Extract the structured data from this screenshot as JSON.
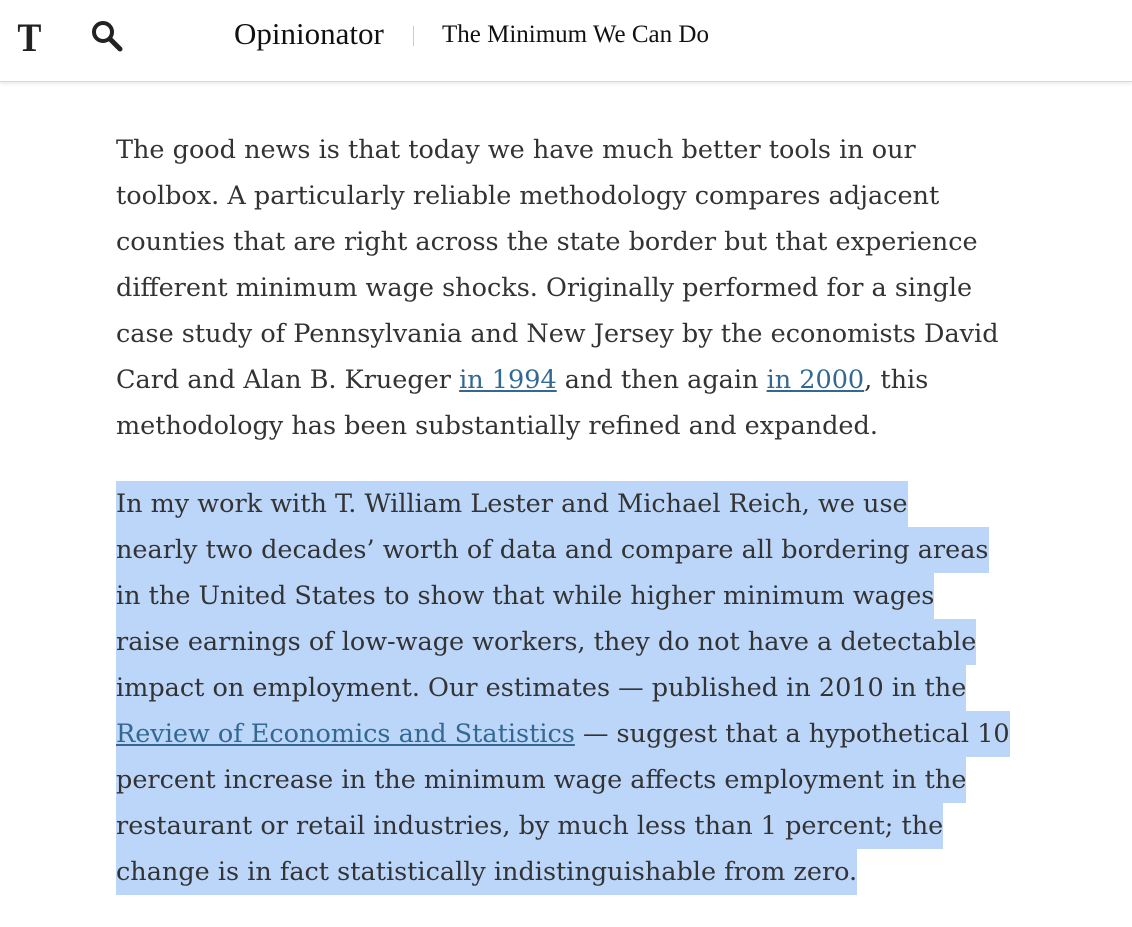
{
  "header": {
    "logo": "T",
    "section": "Opinionator",
    "title": "The Minimum We Can Do"
  },
  "paragraphs": [
    {
      "highlighted": false,
      "lines": [
        [
          "The good news is that today we have much better tools in our"
        ],
        [
          "toolbox. A particularly reliable methodology compares adjacent"
        ],
        [
          "counties that are right across the state border but that experience"
        ],
        [
          "different minimum wage shocks. Originally performed for a single"
        ],
        [
          "case study of Pennsylvania and New Jersey by the economists David"
        ],
        [
          "Card and Alan B. Krueger ",
          {
            "link": "in 1994"
          },
          " and then again ",
          {
            "link": "in 2000"
          },
          ", this"
        ],
        [
          "methodology has been substantially refined and expanded."
        ]
      ]
    },
    {
      "highlighted": true,
      "lines": [
        [
          "In my work with T. William Lester and Michael Reich, we use"
        ],
        [
          "nearly two decades’ worth of data and compare all bordering areas"
        ],
        [
          "in the United States to show that while higher minimum wages"
        ],
        [
          "raise earnings of low-wage workers, they do not have a detectable"
        ],
        [
          "impact on employment. Our estimates — published in 2010 in the"
        ],
        [
          {
            "link": "Review of Economics and Statistics"
          },
          " — suggest that a hypothetical 10"
        ],
        [
          "percent increase in the minimum wage affects employment in the"
        ],
        [
          "restaurant or retail industries, by much less than 1 percent; the"
        ],
        [
          "change is in fact statistically indistinguishable from zero."
        ]
      ]
    }
  ]
}
